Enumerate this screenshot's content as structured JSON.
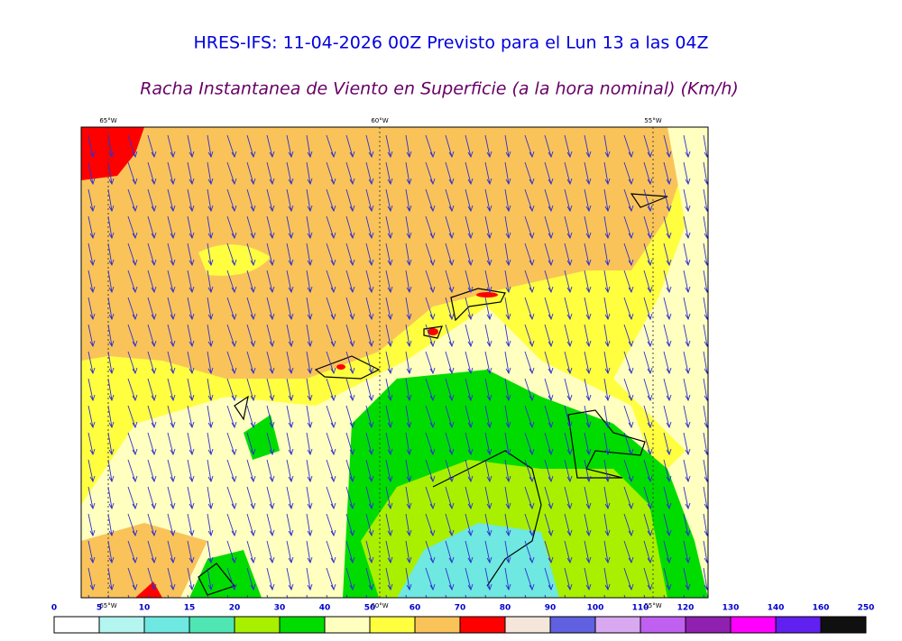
{
  "header": {
    "title": "HRES-IFS: 11-04-2026 00Z Previsto para el Lun 13 a las 04Z",
    "subtitle": "Racha Instantanea de Viento en Superficie (a la hora nominal) (Km/h)"
  },
  "map": {
    "longitudes": [
      "65°W",
      "60°W",
      "55°W"
    ]
  },
  "colorbar": {
    "ticks": [
      0,
      5,
      10,
      15,
      20,
      30,
      40,
      50,
      60,
      70,
      80,
      90,
      100,
      110,
      120,
      130,
      140,
      160,
      250
    ],
    "colors": [
      "#ffffff",
      "#b4f5f0",
      "#6ee8e0",
      "#50e6b4",
      "#a8f000",
      "#00dc00",
      "#ffffc0",
      "#ffff40",
      "#f9c35a",
      "#ff0000",
      "#f5e6dc",
      "#6060e0",
      "#d8a8f0",
      "#c060f0",
      "#9020b0",
      "#ff00ff",
      "#6020f0",
      "#101010"
    ]
  }
}
